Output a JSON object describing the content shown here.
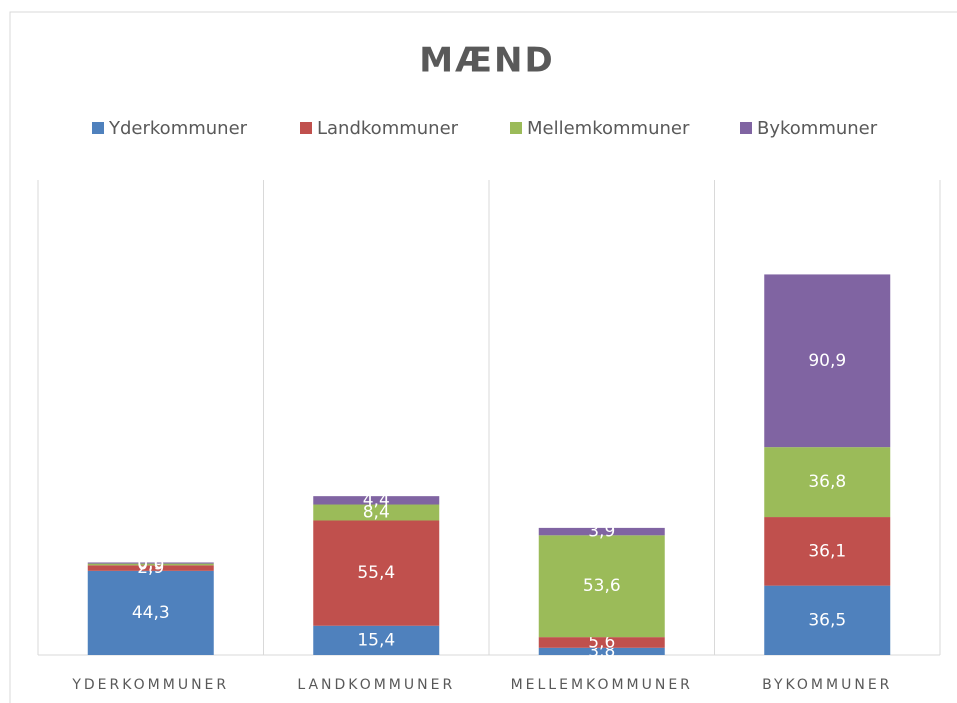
{
  "chart_data": {
    "type": "stacked_bar",
    "title": "MÆND",
    "categories": [
      "YDERKOMMUNER",
      "LANDKOMMUNER",
      "MELLEMKOMMUNER",
      "BYKOMMUNER"
    ],
    "series": [
      {
        "name": "Yderkommuner",
        "color": "#4f81bd",
        "values": [
          44.3,
          15.4,
          3.8,
          36.5
        ],
        "value_labels": [
          "44,3",
          "15,4",
          "3,8",
          "36,5"
        ]
      },
      {
        "name": "Landkommuner",
        "color": "#c0504d",
        "values": [
          2.9,
          55.4,
          5.6,
          36.1
        ],
        "value_labels": [
          "2,9",
          "55,4",
          "5,6",
          "36,1"
        ]
      },
      {
        "name": "Mellemkommuner",
        "color": "#9bbb59",
        "values": [
          0.9,
          8.4,
          53.6,
          36.8
        ],
        "value_labels": [
          "0,9",
          "8,4",
          "53,6",
          "36,8"
        ]
      },
      {
        "name": "Bykommuner",
        "color": "#8064a2",
        "values": [
          0.6,
          4.4,
          3.9,
          90.9
        ],
        "value_labels": [
          "0,6",
          "4,4",
          "3,9",
          "90,9"
        ]
      }
    ],
    "ylim": [
      0,
      250
    ],
    "legend": "top"
  }
}
